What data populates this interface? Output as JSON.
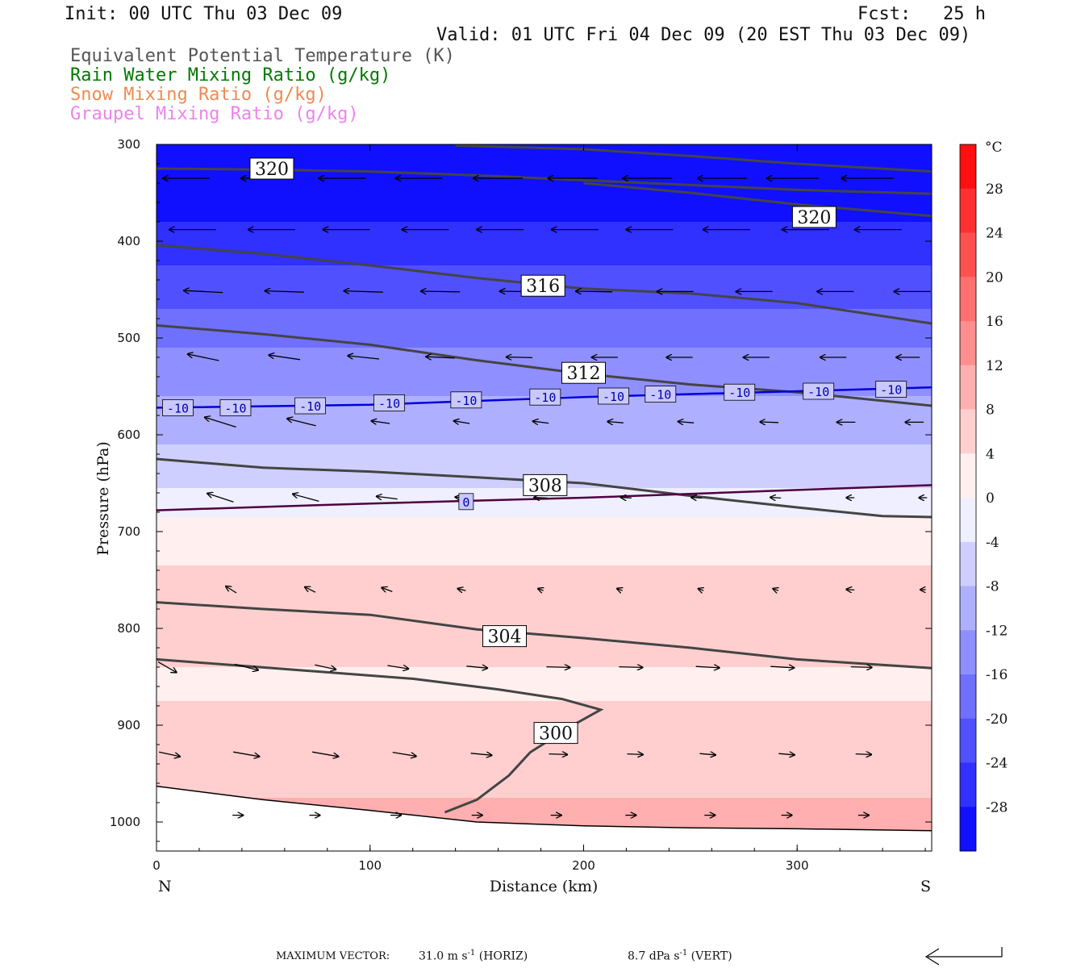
{
  "header": {
    "init": "Init: 00 UTC Thu 03 Dec 09",
    "fcst": "Fcst:   25 h",
    "valid": "Valid: 01 UTC Fri 04 Dec 09 (20 EST Thu 03 Dec 09)",
    "fields": [
      {
        "label": "Equivalent Potential Temperature (K)",
        "color": "#555555"
      },
      {
        "label": "Rain Water Mixing Ratio (g/kg)",
        "color": "#007a00"
      },
      {
        "label": "Snow Mixing Ratio (g/kg)",
        "color": "#f08a50"
      },
      {
        "label": "Graupel Mixing Ratio (g/kg)",
        "color": "#ee82ee"
      }
    ]
  },
  "footer": {
    "max_vector_label": "MAXIMUM VECTOR:",
    "horiz_value": "31.0 m s",
    "horiz_unit": "(HORIZ)",
    "vert_value": "8.7 dPa s",
    "vert_unit": "(VERT)",
    "exponent": "-1"
  },
  "chart_data": {
    "type": "cross-section contour",
    "xlabel": "Distance (km)",
    "ylabel": "Pressure (hPa)",
    "xlim": [
      0,
      363
    ],
    "ylim": [
      1030,
      300
    ],
    "x_ticks": [
      0,
      100,
      200,
      300
    ],
    "y_ticks": [
      300,
      400,
      500,
      600,
      700,
      800,
      900,
      1000
    ],
    "x_end_labels": {
      "left": "N",
      "right": "S"
    },
    "shading_field": "temperature",
    "colorbar": {
      "unit": "°C",
      "ticks": [
        28,
        24,
        20,
        16,
        12,
        8,
        4,
        0,
        -4,
        -8,
        -12,
        -16,
        -20,
        -24,
        -28
      ],
      "range": [
        -32,
        32
      ],
      "cold_color": "#0000ff",
      "warm_color": "#ff0000",
      "neutral_color": "#ffffff"
    },
    "temperature_profile": {
      "pressure": [
        300,
        350,
        400,
        450,
        500,
        550,
        600,
        650,
        700,
        750,
        800,
        850,
        900,
        950,
        1000
      ],
      "temp_c": [
        -32,
        -31,
        -26,
        -22,
        -17,
        -13,
        -9,
        -5,
        2,
        5,
        7,
        3,
        5,
        7,
        9
      ]
    },
    "theta_e_contours": [
      {
        "label": "320",
        "points": [
          [
            0,
            325
          ],
          [
            50,
            326
          ],
          [
            100,
            328
          ],
          [
            150,
            332
          ],
          [
            200,
            337
          ],
          [
            250,
            342
          ],
          [
            300,
            347
          ],
          [
            363,
            351
          ]
        ],
        "label_at": [
          54,
          325
        ]
      },
      {
        "label": "320",
        "points": [
          [
            200,
            340
          ],
          [
            250,
            350
          ],
          [
            300,
            362
          ],
          [
            363,
            374
          ]
        ],
        "label_at": [
          308,
          375
        ]
      },
      {
        "label": "",
        "points": [
          [
            140,
            301
          ],
          [
            200,
            305
          ],
          [
            250,
            312
          ],
          [
            300,
            320
          ],
          [
            363,
            328
          ]
        ]
      },
      {
        "label": "316",
        "points": [
          [
            0,
            404
          ],
          [
            50,
            413
          ],
          [
            100,
            425
          ],
          [
            150,
            438
          ],
          [
            200,
            449
          ],
          [
            250,
            454
          ],
          [
            300,
            464
          ],
          [
            363,
            485
          ]
        ],
        "label_at": [
          181,
          446
        ]
      },
      {
        "label": "312",
        "points": [
          [
            0,
            487
          ],
          [
            50,
            496
          ],
          [
            100,
            507
          ],
          [
            150,
            523
          ],
          [
            200,
            537
          ],
          [
            250,
            548
          ],
          [
            300,
            556
          ],
          [
            363,
            570
          ]
        ],
        "label_at": [
          200,
          536
        ]
      },
      {
        "label": "308",
        "points": [
          [
            0,
            625
          ],
          [
            50,
            634
          ],
          [
            100,
            638
          ],
          [
            150,
            644
          ],
          [
            200,
            650
          ],
          [
            250,
            663
          ],
          [
            300,
            675
          ],
          [
            340,
            684
          ],
          [
            363,
            685
          ]
        ],
        "label_at": [
          182,
          652
        ]
      },
      {
        "label": "304",
        "points": [
          [
            0,
            773
          ],
          [
            50,
            780
          ],
          [
            100,
            786
          ],
          [
            150,
            801
          ],
          [
            200,
            810
          ],
          [
            250,
            820
          ],
          [
            300,
            832
          ],
          [
            363,
            841
          ]
        ],
        "label_at": [
          163,
          808
        ]
      },
      {
        "label": "300",
        "points": [
          [
            0,
            832
          ],
          [
            60,
            842
          ],
          [
            120,
            852
          ],
          [
            160,
            863
          ],
          [
            190,
            873
          ],
          [
            208,
            884
          ],
          [
            195,
            900
          ],
          [
            175,
            928
          ],
          [
            165,
            952
          ],
          [
            150,
            977
          ],
          [
            135,
            990
          ]
        ],
        "label_at": [
          187,
          908
        ]
      }
    ],
    "temperature_isotherms": [
      {
        "label": "-10",
        "color": "#0000dd",
        "points": [
          [
            0,
            572
          ],
          [
            100,
            569
          ],
          [
            200,
            561
          ],
          [
            300,
            555
          ],
          [
            363,
            551
          ]
        ],
        "labels_at": [
          [
            10,
            572
          ],
          [
            37,
            572
          ],
          [
            72,
            570
          ],
          [
            109,
            567
          ],
          [
            145,
            564
          ],
          [
            182,
            561
          ],
          [
            214,
            560
          ],
          [
            236,
            558
          ],
          [
            273,
            556
          ],
          [
            310,
            555
          ],
          [
            344,
            553
          ]
        ]
      },
      {
        "label": "0",
        "color": "#500040",
        "points": [
          [
            0,
            678
          ],
          [
            100,
            671
          ],
          [
            200,
            665
          ],
          [
            250,
            661
          ],
          [
            300,
            657
          ],
          [
            363,
            652
          ]
        ],
        "labels_at": [
          [
            145,
            669
          ]
        ]
      }
    ],
    "wind_vectors": {
      "rows": [
        {
          "p": 335,
          "items": [
            [
              14,
              -18,
              0
            ],
            [
              50,
              -17,
              0
            ],
            [
              87,
              -18,
              0
            ],
            [
              123,
              -18,
              0
            ],
            [
              160,
              -19,
              0
            ],
            [
              195,
              -19,
              0
            ],
            [
              230,
              -19,
              0
            ],
            [
              265,
              -19,
              0
            ],
            [
              298,
              -20,
              0
            ],
            [
              333,
              -20,
              0
            ]
          ]
        },
        {
          "p": 388,
          "items": [
            [
              17,
              -18,
              0
            ],
            [
              54,
              -18,
              0
            ],
            [
              89,
              -18,
              0
            ],
            [
              126,
              -18,
              0
            ],
            [
              161,
              -18,
              0
            ],
            [
              196,
              -18,
              0
            ],
            [
              231,
              -18,
              0
            ],
            [
              267,
              -18,
              0
            ],
            [
              304,
              -18,
              0
            ],
            [
              338,
              -18,
              0
            ]
          ]
        },
        {
          "p": 452,
          "items": [
            [
              22,
              -15,
              0.3
            ],
            [
              60,
              -15,
              0.2
            ],
            [
              97,
              -15,
              0.2
            ],
            [
              133,
              -15,
              0.1
            ],
            [
              170,
              -15,
              0.1
            ],
            [
              205,
              -14,
              0.1
            ],
            [
              243,
              -14,
              0
            ],
            [
              280,
              -14,
              0
            ],
            [
              318,
              -14,
              0
            ],
            [
              354,
              -14,
              0
            ]
          ]
        },
        {
          "p": 520,
          "items": [
            [
              22,
              -12,
              1.0
            ],
            [
              60,
              -12,
              0.7
            ],
            [
              97,
              -12,
              0.5
            ],
            [
              133,
              -11,
              0.2
            ],
            [
              170,
              -10,
              0.1
            ],
            [
              210,
              -10,
              0
            ],
            [
              245,
              -10,
              0
            ],
            [
              281,
              -10,
              0
            ],
            [
              317,
              -10,
              0
            ],
            [
              352,
              -9,
              0
            ]
          ]
        },
        {
          "p": 587,
          "items": [
            [
              30,
              -12,
              1.5
            ],
            [
              68,
              -11,
              1.1
            ],
            [
              105,
              -7,
              0.4
            ],
            [
              143,
              -6,
              0.4
            ],
            [
              180,
              -6,
              0.3
            ],
            [
              215,
              -6,
              0.2
            ],
            [
              248,
              -6,
              0.2
            ],
            [
              287,
              -7,
              0.1
            ],
            [
              323,
              -7,
              0
            ],
            [
              355,
              -7,
              0
            ]
          ]
        },
        {
          "p": 665,
          "items": [
            [
              30,
              -10,
              1.3
            ],
            [
              70,
              -10,
              1.1
            ],
            [
              108,
              -8,
              0.4
            ],
            [
              143,
              -5,
              0.2
            ],
            [
              180,
              -5,
              0.1
            ],
            [
              220,
              -4,
              0.1
            ],
            [
              253,
              -4,
              0.1
            ],
            [
              290,
              -4,
              0.1
            ],
            [
              325,
              -3,
              0
            ],
            [
              359,
              -3,
              0
            ]
          ]
        },
        {
          "p": 760,
          "items": [
            [
              35,
              -4,
              1.0
            ],
            [
              72,
              -4,
              0.8
            ],
            [
              108,
              -4,
              0.6
            ],
            [
              143,
              -3,
              0.3
            ],
            [
              180,
              -2,
              0.3
            ],
            [
              217,
              -2,
              0.3
            ],
            [
              255,
              -2,
              0.3
            ],
            [
              290,
              -2,
              0.3
            ],
            [
              325,
              -3,
              0.1
            ],
            [
              359,
              -2,
              0
            ]
          ]
        },
        {
          "p": 840,
          "items": [
            [
              5,
              7,
              -1.6
            ],
            [
              42,
              9,
              -0.9
            ],
            [
              79,
              8,
              -0.7
            ],
            [
              113,
              8,
              -0.5
            ],
            [
              150,
              8,
              -0.3
            ],
            [
              188,
              9,
              -0.1
            ],
            [
              222,
              9,
              -0.1
            ],
            [
              258,
              9,
              -0.2
            ],
            [
              293,
              9,
              -0.2
            ],
            [
              330,
              8,
              -0.1
            ]
          ]
        },
        {
          "p": 930,
          "items": [
            [
              6,
              8,
              -0.7
            ],
            [
              42,
              10,
              -0.7
            ],
            [
              79,
              10,
              -0.7
            ],
            [
              116,
              9,
              -0.6
            ],
            [
              152,
              8,
              -0.3
            ],
            [
              188,
              7,
              -0.1
            ],
            [
              224,
              6,
              -0.1
            ],
            [
              258,
              6,
              -0.2
            ],
            [
              295,
              6,
              -0.2
            ],
            [
              331,
              6,
              -0.1
            ]
          ]
        },
        {
          "p": 993,
          "items": [
            [
              38,
              4,
              0
            ],
            [
              74,
              4,
              0
            ],
            [
              112,
              4,
              0
            ],
            [
              150,
              4,
              0
            ],
            [
              187,
              4,
              0
            ],
            [
              222,
              4,
              0
            ],
            [
              259,
              4,
              0
            ],
            [
              295,
              4,
              0
            ],
            [
              331,
              4,
              0
            ]
          ]
        }
      ],
      "max_horiz": "31.0",
      "max_vert": "8.7"
    },
    "terrain": {
      "surface": [
        [
          0,
          963
        ],
        [
          50,
          977
        ],
        [
          100,
          988
        ],
        [
          150,
          1000
        ],
        [
          200,
          1004
        ],
        [
          250,
          1006
        ],
        [
          300,
          1007
        ],
        [
          363,
          1009
        ]
      ]
    }
  }
}
